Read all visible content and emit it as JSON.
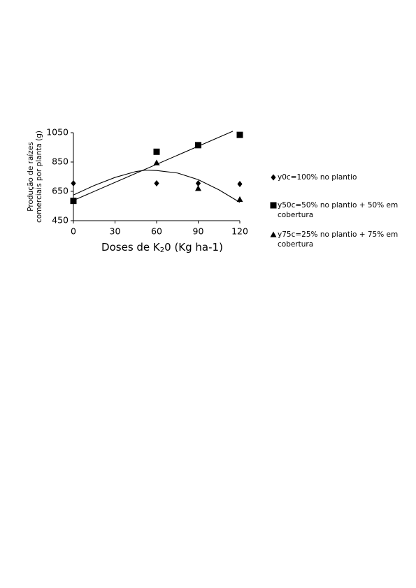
{
  "chart_data": {
    "type": "scatter",
    "ylabel_lines": [
      "Produção de raízes",
      "comerciais por planta (g)"
    ],
    "xlabel": {
      "before": "Doses de K",
      "sub": "2",
      "after": "0 (Kg ha-1)"
    },
    "x": [
      0,
      60,
      90,
      120
    ],
    "series": [
      {
        "name": "y0c=100% no plantio",
        "color": "#000000",
        "marker": "diamond",
        "values": [
          705,
          705,
          705,
          700
        ]
      },
      {
        "name": "y50c=50% no plantio + 50% em cobertura",
        "color": "#000000",
        "marker": "square",
        "values": [
          585,
          920,
          965,
          1035
        ]
      },
      {
        "name": "y75c=25% no plantio + 75% em cobertura",
        "color": "#000000",
        "marker": "triangle",
        "values": [
          585,
          845,
          670,
          595
        ]
      }
    ],
    "trendlines": [
      {
        "x": [
          0,
          115
        ],
        "values": [
          588,
          1060
        ]
      },
      {
        "x": [
          0,
          15,
          30,
          45,
          52,
          60,
          75,
          90,
          105,
          120
        ],
        "values": [
          625,
          690,
          745,
          785,
          795,
          792,
          775,
          730,
          660,
          575
        ]
      }
    ],
    "xlim": [
      0,
      120
    ],
    "xticks": [
      0,
      30,
      60,
      90,
      120
    ],
    "ylim": [
      450,
      1050
    ],
    "yticks": [
      450,
      650,
      850,
      1050
    ]
  }
}
